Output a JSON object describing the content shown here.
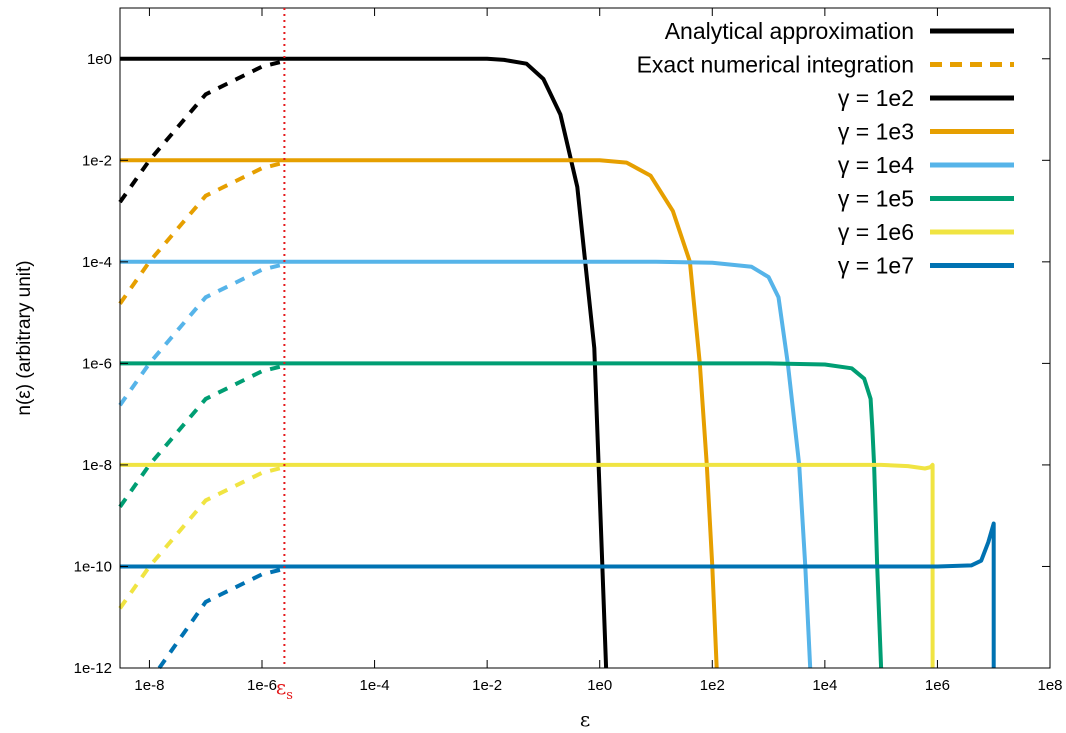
{
  "chart_data": {
    "type": "line",
    "title": "",
    "xlabel": "ε",
    "ylabel": "n(ε) (arbitrary unit)",
    "x_scale": "log",
    "y_scale": "log",
    "xlim": [
      3e-09,
      100000000.0
    ],
    "ylim": [
      1e-12,
      10.0
    ],
    "x_ticks": [
      "1e-8",
      "1e-6",
      "1e-4",
      "1e-2",
      "1e0",
      "1e2",
      "1e4",
      "1e6",
      "1e8"
    ],
    "y_ticks": [
      "1e-12",
      "1e-10",
      "1e-8",
      "1e-6",
      "1e-4",
      "1e-2",
      "1e0"
    ],
    "grid": false,
    "legend_position": "top-right",
    "legend_styles": [
      {
        "label": "Analytical approximation",
        "color": "#000000",
        "dash": "solid"
      },
      {
        "label": "Exact numerical integration",
        "color": "#E69F00",
        "dash": "dashed"
      }
    ],
    "vline": {
      "x": 2.5e-06,
      "label_main": "ε",
      "label_sub": "s",
      "color": "#e41a1c",
      "style": "dotted"
    },
    "series": [
      {
        "name": "γ = 1e2",
        "color": "#000000",
        "analytical": [
          [
            3e-09,
            1.0
          ],
          [
            2.5e-06,
            1.0
          ],
          [
            0.01,
            1.0
          ],
          [
            0.02,
            0.95
          ],
          [
            0.05,
            0.8
          ],
          [
            0.1,
            0.4
          ],
          [
            0.2,
            0.08
          ],
          [
            0.4,
            0.003
          ],
          [
            0.8,
            2e-06
          ],
          [
            1.3,
            1e-12
          ]
        ],
        "exact": [
          [
            3e-09,
            0.0015
          ],
          [
            1e-08,
            0.01
          ],
          [
            1e-07,
            0.2
          ],
          [
            1e-06,
            0.7
          ],
          [
            2.5e-06,
            0.9
          ]
        ]
      },
      {
        "name": "γ = 1e3",
        "color": "#E69F00",
        "analytical": [
          [
            3e-09,
            0.01
          ],
          [
            2.5e-06,
            0.01
          ],
          [
            1,
            0.01
          ],
          [
            3,
            0.009
          ],
          [
            8,
            0.005
          ],
          [
            20,
            0.001
          ],
          [
            40,
            0.0001
          ],
          [
            60,
            1e-06
          ],
          [
            80,
            1e-08
          ],
          [
            100,
            1e-10
          ],
          [
            120,
            1e-12
          ]
        ],
        "exact": [
          [
            3e-09,
            1.5e-05
          ],
          [
            1e-08,
            0.0001
          ],
          [
            1e-07,
            0.002
          ],
          [
            1e-06,
            0.007
          ],
          [
            2.5e-06,
            0.009
          ]
        ]
      },
      {
        "name": "γ = 1e4",
        "color": "#56B4E9",
        "analytical": [
          [
            3e-09,
            0.0001
          ],
          [
            2.5e-06,
            0.0001
          ],
          [
            10,
            0.0001
          ],
          [
            100,
            9.6e-05
          ],
          [
            500,
            8e-05
          ],
          [
            1000,
            5e-05
          ],
          [
            1500,
            2e-05
          ],
          [
            2200,
            1e-06
          ],
          [
            3500,
            1e-08
          ],
          [
            4500,
            1e-10
          ],
          [
            5500,
            1e-12
          ]
        ],
        "exact": [
          [
            3e-09,
            1.5e-07
          ],
          [
            1e-08,
            1e-06
          ],
          [
            1e-07,
            2e-05
          ],
          [
            1e-06,
            7e-05
          ],
          [
            2.5e-06,
            9e-05
          ]
        ]
      },
      {
        "name": "γ = 1e5",
        "color": "#009E73",
        "analytical": [
          [
            3e-09,
            1e-06
          ],
          [
            2.5e-06,
            1e-06
          ],
          [
            1000,
            1e-06
          ],
          [
            10000,
            9.5e-07
          ],
          [
            30000,
            8e-07
          ],
          [
            50000,
            5e-07
          ],
          [
            65000,
            2e-07
          ],
          [
            70000,
            5e-08
          ],
          [
            75000,
            1e-08
          ],
          [
            85000,
            1e-10
          ],
          [
            100000,
            1e-12
          ]
        ],
        "exact": [
          [
            3e-09,
            1.5e-09
          ],
          [
            1e-08,
            1e-08
          ],
          [
            1e-07,
            2e-07
          ],
          [
            1e-06,
            7e-07
          ],
          [
            2.5e-06,
            9e-07
          ]
        ]
      },
      {
        "name": "γ = 1e6",
        "color": "#F0E442",
        "analytical": [
          [
            3e-09,
            1e-08
          ],
          [
            2.5e-06,
            1e-08
          ],
          [
            100000,
            1e-08
          ],
          [
            300000,
            9.5e-09
          ],
          [
            600000,
            8.5e-09
          ],
          [
            750000,
            9e-09
          ],
          [
            820000,
            1e-08
          ],
          [
            820000,
            1e-12
          ]
        ],
        "exact": [
          [
            3e-09,
            1.5e-11
          ],
          [
            1e-08,
            1e-10
          ],
          [
            1e-07,
            2e-09
          ],
          [
            1e-06,
            7e-09
          ],
          [
            2.5e-06,
            9e-09
          ]
        ]
      },
      {
        "name": "γ = 1e7",
        "color": "#0072B2",
        "analytical": [
          [
            3e-09,
            1e-10
          ],
          [
            2.5e-06,
            1e-10
          ],
          [
            1000000,
            1e-10
          ],
          [
            4000000,
            1.05e-10
          ],
          [
            6000000,
            1.3e-10
          ],
          [
            8000000,
            3e-10
          ],
          [
            10000000,
            7e-10
          ],
          [
            10000000,
            1e-12
          ]
        ],
        "exact": [
          [
            1.5e-08,
            1e-12
          ],
          [
            1e-07,
            2e-11
          ],
          [
            1e-06,
            7e-11
          ],
          [
            2.5e-06,
            9e-11
          ]
        ]
      }
    ]
  }
}
